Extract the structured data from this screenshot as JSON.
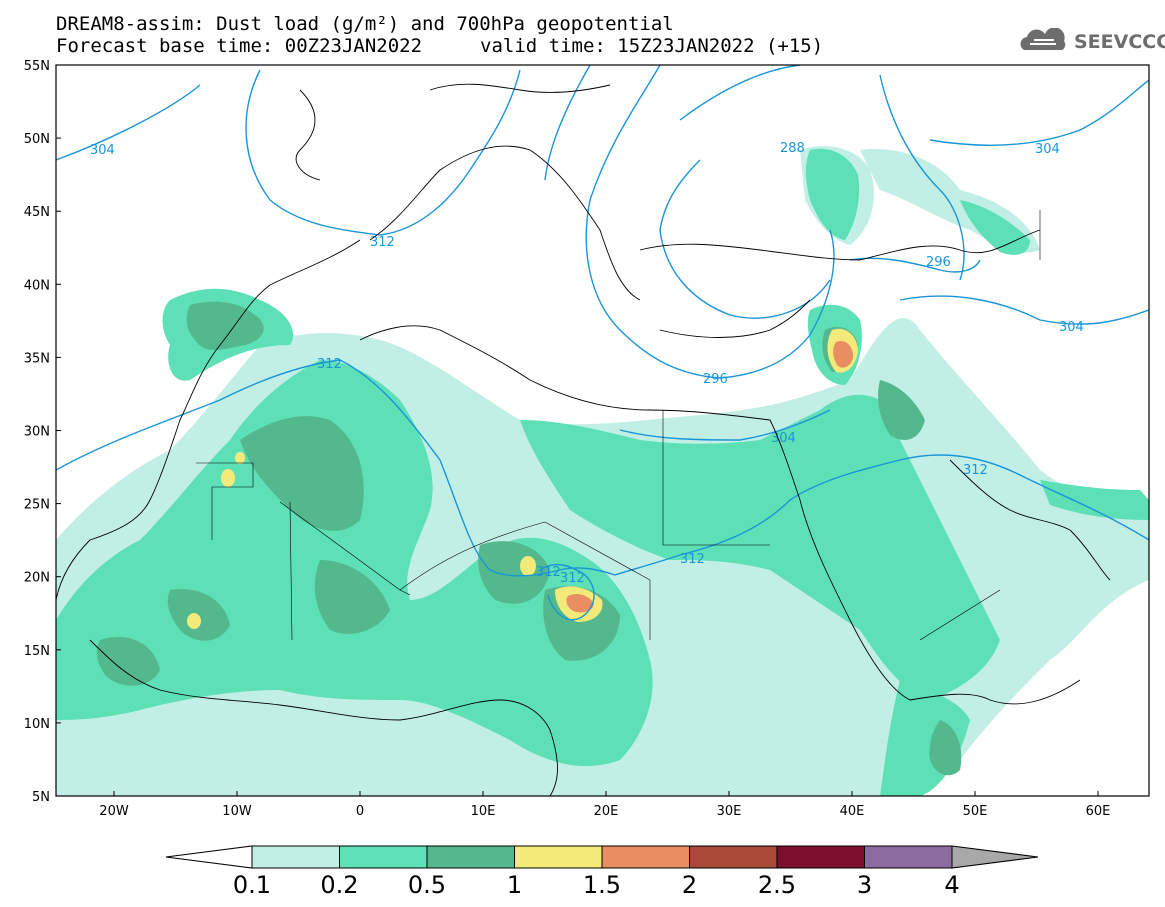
{
  "header": {
    "title_line1": "DREAM8-assim: Dust load (g/m²) and 700hPa geopotential",
    "title_line2": "Forecast base time: 00Z23JAN2022",
    "valid_time": "valid time: 15Z23JAN2022 (+15)",
    "logo_text": "SEEVCCC"
  },
  "map": {
    "lat_ticks": [
      "55N",
      "50N",
      "45N",
      "40N",
      "35N",
      "30N",
      "25N",
      "20N",
      "15N",
      "10N",
      "5N"
    ],
    "lon_ticks": [
      "20W",
      "10W",
      "0",
      "10E",
      "20E",
      "30E",
      "40E",
      "50E",
      "60E"
    ],
    "geopotential_labels": [
      "304",
      "312",
      "288",
      "296",
      "304",
      "296",
      "312",
      "312",
      "304",
      "312",
      "312",
      "304",
      "312"
    ],
    "colors": {
      "contour": "#1a95d8",
      "coast": "#000000"
    }
  },
  "colorbar": {
    "ticks": [
      "0.1",
      "0.2",
      "0.5",
      "1",
      "1.5",
      "2",
      "2.5",
      "3",
      "4"
    ],
    "colors": [
      "#c2efe5",
      "#5ee0b6",
      "#54b88e",
      "#f4ea7a",
      "#e98d62",
      "#a84836",
      "#7c0f2e",
      "#8c6ba0"
    ],
    "under_color": "#ffffff",
    "over_color": "#a8a8a8"
  }
}
